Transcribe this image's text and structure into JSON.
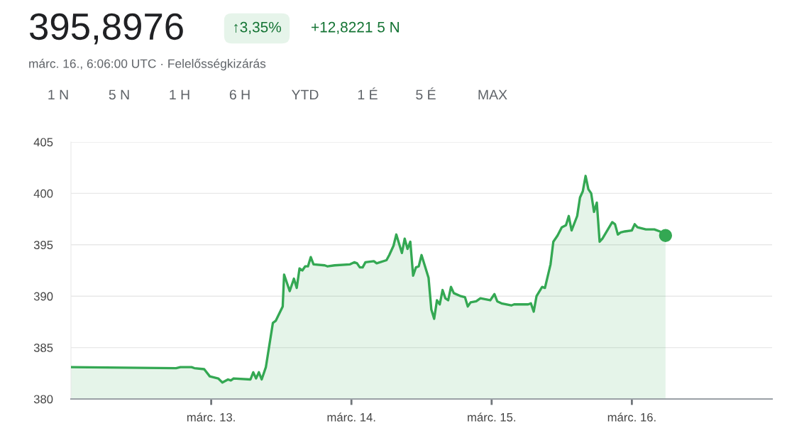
{
  "chart_data": {
    "type": "area",
    "title": "395,8976",
    "subtitle": "márc. 16., 6:06:00 UTC · Felelősségkizárás",
    "annotations": [
      "↑3,35%",
      "+12,8221 5 N",
      "1 N",
      "5 N",
      "1 H",
      "6 H",
      "YTD",
      "1 É",
      "5 É",
      "MAX"
    ],
    "xlim": [
      12,
      17
    ],
    "ylim": [
      380,
      405
    ],
    "yticks": [
      380,
      385,
      390,
      395,
      400,
      405
    ],
    "xticks": [
      {
        "value": 13,
        "label": "márc. 13."
      },
      {
        "value": 14,
        "label": "márc. 14."
      },
      {
        "value": 15,
        "label": "márc. 15."
      },
      {
        "value": 16,
        "label": "márc. 16."
      }
    ],
    "grid": "y",
    "series": [
      {
        "color": "#34a853",
        "x": [
          12.0,
          12.75,
          12.78,
          12.86,
          12.88,
          12.95,
          12.99,
          13.05,
          13.08,
          13.12,
          13.14,
          13.16,
          13.28,
          13.3,
          13.32,
          13.34,
          13.36,
          13.39,
          13.44,
          13.46,
          13.51,
          13.52,
          13.56,
          13.59,
          13.61,
          13.63,
          13.65,
          13.67,
          13.69,
          13.71,
          13.73,
          13.81,
          13.83,
          13.88,
          13.99,
          14.02,
          14.04,
          14.06,
          14.08,
          14.1,
          14.16,
          14.18,
          14.25,
          14.27,
          14.3,
          14.32,
          14.36,
          14.38,
          14.4,
          14.42,
          14.44,
          14.46,
          14.48,
          14.5,
          14.55,
          14.57,
          14.59,
          14.61,
          14.63,
          14.65,
          14.67,
          14.69,
          14.71,
          14.73,
          14.78,
          14.81,
          14.83,
          14.85,
          14.89,
          14.92,
          14.99,
          15.02,
          15.04,
          15.07,
          15.14,
          15.16,
          15.26,
          15.28,
          15.3,
          15.32,
          15.36,
          15.38,
          15.42,
          15.44,
          15.47,
          15.5,
          15.53,
          15.55,
          15.57,
          15.61,
          15.63,
          15.65,
          15.67,
          15.69,
          15.71,
          15.73,
          15.75,
          15.77,
          15.79,
          15.86,
          15.88,
          15.9,
          15.92,
          15.95,
          16.0,
          16.02,
          16.04,
          16.1,
          16.16,
          16.2,
          16.24
        ],
        "values": [
          383.1,
          383.0,
          383.1,
          383.1,
          383.0,
          382.9,
          382.2,
          382.0,
          381.6,
          381.9,
          381.8,
          382.0,
          381.9,
          382.6,
          382.0,
          382.6,
          381.9,
          383.1,
          387.4,
          387.6,
          389.0,
          392.1,
          390.5,
          391.7,
          390.8,
          392.7,
          392.5,
          392.9,
          392.9,
          393.8,
          393.1,
          393.0,
          392.9,
          393.0,
          393.1,
          393.3,
          393.2,
          392.8,
          392.8,
          393.3,
          393.4,
          393.2,
          393.5,
          394.0,
          394.9,
          396.0,
          394.2,
          395.6,
          394.6,
          395.3,
          392.0,
          392.8,
          392.9,
          394.0,
          391.8,
          388.7,
          387.8,
          389.6,
          389.2,
          390.6,
          389.8,
          389.6,
          390.9,
          390.3,
          390.0,
          389.9,
          389.0,
          389.4,
          389.5,
          389.8,
          389.6,
          390.2,
          389.5,
          389.3,
          389.1,
          389.2,
          389.2,
          389.3,
          388.5,
          390.0,
          390.9,
          390.8,
          393.1,
          395.3,
          395.9,
          396.7,
          396.9,
          397.8,
          396.4,
          397.8,
          399.6,
          400.2,
          401.7,
          400.4,
          400.0,
          398.2,
          399.1,
          395.3,
          395.6,
          397.2,
          397.0,
          396.0,
          396.2,
          396.3,
          396.4,
          397.0,
          396.7,
          396.5,
          396.5,
          396.3,
          395.9
        ]
      },
      {
        "type": "scatter",
        "color": "#34a853",
        "marker": "circle",
        "x": [
          16.24
        ],
        "values": [
          395.9
        ]
      }
    ]
  }
}
